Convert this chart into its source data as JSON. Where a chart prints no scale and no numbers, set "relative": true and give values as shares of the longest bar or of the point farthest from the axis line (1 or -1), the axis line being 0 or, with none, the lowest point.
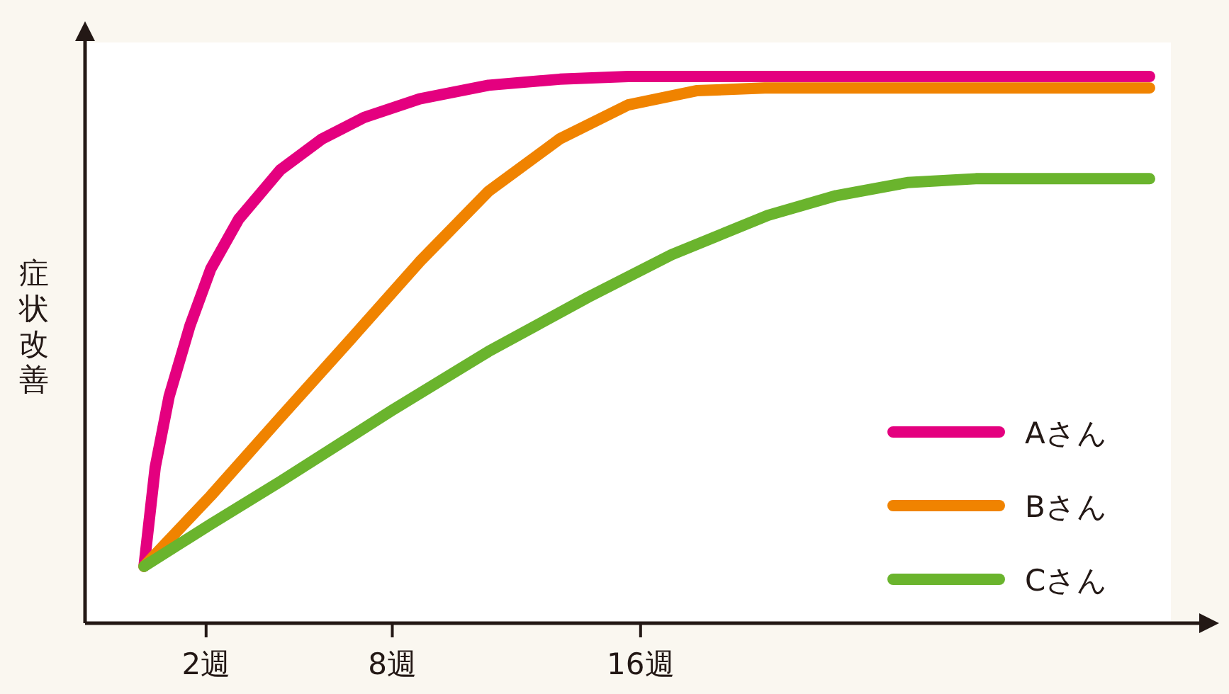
{
  "chart_data": {
    "type": "line",
    "relative": true,
    "ylabel": "症状改善",
    "xlim": [
      -1.9,
      34
    ],
    "xticks": [
      {
        "value": 2,
        "label": "2週"
      },
      {
        "value": 8,
        "label": "8週"
      },
      {
        "value": 16,
        "label": "16週"
      }
    ],
    "legend": "bottom right",
    "marker": "none",
    "line_style": "solid",
    "series": [
      {
        "name": "Aさん",
        "color": "#e4007f",
        "x": [
          0,
          0.36,
          0.81,
          1.48,
          2.15,
          3.05,
          4.39,
          5.74,
          7.09,
          8.88,
          11.1,
          13.4,
          15.6,
          32.4
        ],
        "values": [
          0.104,
          0.285,
          0.415,
          0.544,
          0.648,
          0.739,
          0.829,
          0.886,
          0.925,
          0.959,
          0.984,
          0.995,
          1,
          1
        ]
      },
      {
        "name": "Bさん",
        "color": "#f08300",
        "x": [
          0,
          2.15,
          4.39,
          6.64,
          8.88,
          11.1,
          13.4,
          15.6,
          17.8,
          20.0,
          32.4
        ],
        "values": [
          0.104,
          0.233,
          0.376,
          0.518,
          0.661,
          0.79,
          0.886,
          0.948,
          0.974,
          0.979,
          0.979
        ]
      },
      {
        "name": "Cさん",
        "color": "#6ab42d",
        "x": [
          0,
          2.15,
          4.39,
          7.98,
          11.1,
          14.3,
          17.0,
          20.1,
          22.3,
          24.6,
          26.8,
          32.4
        ],
        "values": [
          0.104,
          0.181,
          0.259,
          0.389,
          0.497,
          0.596,
          0.674,
          0.746,
          0.782,
          0.806,
          0.813,
          0.813
        ]
      }
    ]
  }
}
